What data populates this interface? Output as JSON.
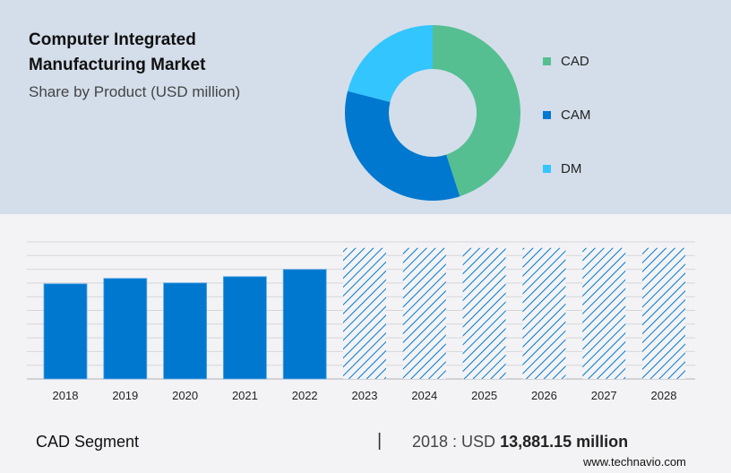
{
  "header": {
    "title": "Computer Integrated Manufacturing Market",
    "subtitle": "Share by Product (USD million)"
  },
  "chart_data": [
    {
      "type": "pie",
      "donut": true,
      "categories": [
        "CAD",
        "CAM",
        "DM"
      ],
      "values": [
        45,
        34,
        21
      ],
      "colors": [
        "#55bf91",
        "#0078d0",
        "#33c5fe"
      ],
      "legend_placement": "right"
    },
    {
      "type": "bar",
      "categories": [
        "2018",
        "2019",
        "2020",
        "2021",
        "2022",
        "2023",
        "2024",
        "2025",
        "2026",
        "2027",
        "2028"
      ],
      "values": [
        13881.15,
        14670,
        14010,
        14930,
        15980,
        19120,
        19120,
        19120,
        19120,
        19120,
        19120
      ],
      "forecast": [
        false,
        false,
        false,
        false,
        false,
        true,
        true,
        true,
        true,
        true,
        true
      ],
      "color": "#0078d0",
      "forecast_style": "hatched",
      "ylim": [
        0,
        20000
      ],
      "grid": true,
      "xlabel": "",
      "ylabel": ""
    }
  ],
  "footer": {
    "segment": "CAD Segment",
    "separator": "|",
    "year_label": "2018 : USD ",
    "value": "13,881.15 million",
    "site": "www.technavio.com"
  }
}
